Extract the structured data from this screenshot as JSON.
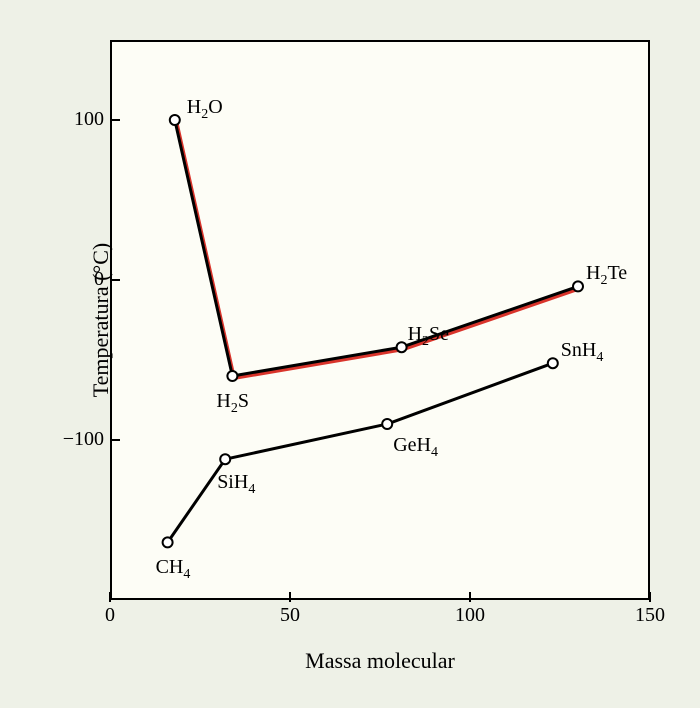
{
  "axes": {
    "xlabel": "Massa molecular",
    "ylabel": "Temperatura (°C)",
    "xlim": [
      0,
      150
    ],
    "ylim": [
      -200,
      150
    ],
    "yticks": [
      {
        "v": 100,
        "t": "100"
      },
      {
        "v": 0,
        "t": "0"
      },
      {
        "v": -100,
        "t": "−100"
      }
    ],
    "xticks": [
      {
        "v": 0,
        "t": "0"
      },
      {
        "v": 50,
        "t": "50"
      },
      {
        "v": 100,
        "t": "100"
      },
      {
        "v": 150,
        "t": "150"
      }
    ]
  },
  "style": {
    "line_A": {
      "stroke": "#000000",
      "shadow": "#d9342b",
      "width": 3
    },
    "line_B": {
      "stroke": "#000000",
      "width": 3
    },
    "marker": {
      "r": 5,
      "fill": "#ffffff",
      "stroke": "#000000",
      "sw": 2
    },
    "plot_bg": "#fdfdf6",
    "panel_bg": "#eef1e7",
    "label_fontsize": 20
  },
  "series": [
    {
      "id": "A",
      "points": [
        {
          "x": 18,
          "y": 100,
          "name": "H2O",
          "lbl_dx": 12,
          "lbl_dy": -24,
          "html": "H<sub>2</sub>O"
        },
        {
          "x": 34,
          "y": -60,
          "name": "H2S",
          "lbl_dx": -16,
          "lbl_dy": 14,
          "html": "H<sub>2</sub>S"
        },
        {
          "x": 81,
          "y": -42,
          "name": "H2Se",
          "lbl_dx": 6,
          "lbl_dy": -24,
          "html": "H<sub>2</sub>Se"
        },
        {
          "x": 130,
          "y": -4,
          "name": "H2Te",
          "lbl_dx": 8,
          "lbl_dy": -24,
          "html": "H<sub>2</sub>Te"
        }
      ]
    },
    {
      "id": "B",
      "points": [
        {
          "x": 16,
          "y": -164,
          "name": "CH4",
          "lbl_dx": -12,
          "lbl_dy": 14,
          "html": "CH<sub>4</sub>"
        },
        {
          "x": 32,
          "y": -112,
          "name": "SiH4",
          "lbl_dx": -8,
          "lbl_dy": 12,
          "html": "SiH<sub>4</sub>"
        },
        {
          "x": 77,
          "y": -90,
          "name": "GeH4",
          "lbl_dx": 6,
          "lbl_dy": 10,
          "html": "GeH<sub>4</sub>"
        },
        {
          "x": 123,
          "y": -52,
          "name": "SnH4",
          "lbl_dx": 8,
          "lbl_dy": -24,
          "html": "SnH<sub>4</sub>"
        }
      ]
    }
  ]
}
